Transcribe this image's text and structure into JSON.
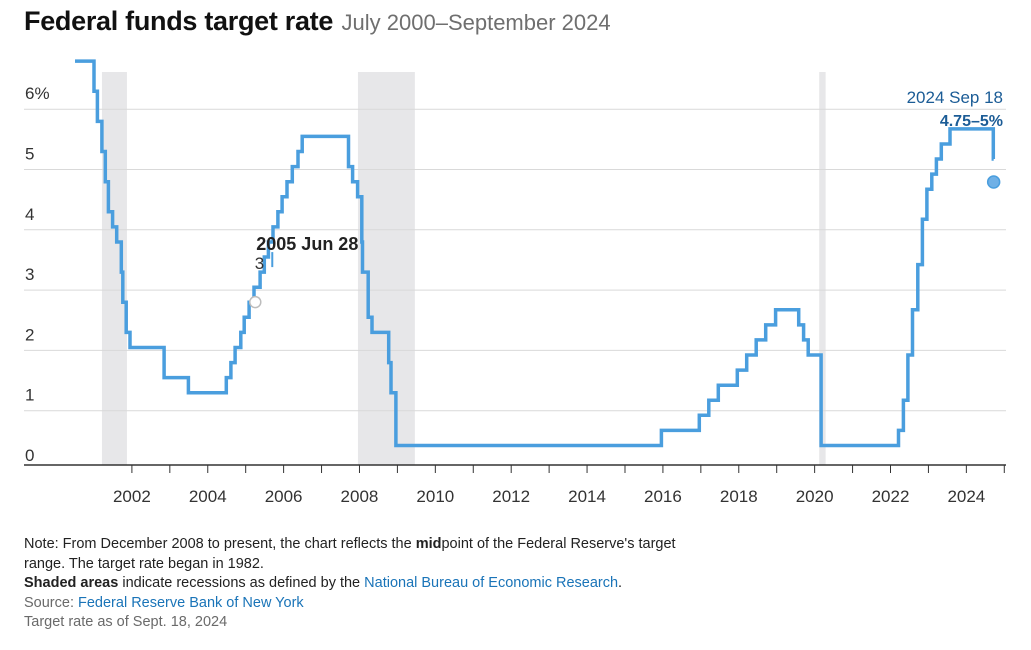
{
  "header": {
    "title": "Federal funds target rate",
    "subtitle": "July 2000–September 2024"
  },
  "chart_data": {
    "type": "line",
    "title": "Federal funds target rate",
    "subtitle": "July 2000–September 2024",
    "xlabel": "",
    "ylabel": "",
    "x_ticks": [
      "2002",
      "2004",
      "2006",
      "2008",
      "2010",
      "2012",
      "2014",
      "2016",
      "2018",
      "2020",
      "2022",
      "2024"
    ],
    "y_ticks": [
      "0",
      "1",
      "2",
      "3",
      "4",
      "5",
      "6%"
    ],
    "xlim": [
      2000.5,
      2024.75
    ],
    "ylim": [
      0,
      6.5
    ],
    "grid": true,
    "colors": {
      "line": "#4a9ede",
      "recession": "#e7e7e9",
      "grid": "#d9d9d9",
      "annotation": "#1b5c96"
    },
    "recessions": [
      {
        "start": 2001.21,
        "end": 2001.87
      },
      {
        "start": 2007.96,
        "end": 2009.46
      },
      {
        "start": 2020.12,
        "end": 2020.29
      }
    ],
    "series": [
      {
        "values": [
          [
            2000.5,
            6.5
          ],
          [
            2001.0,
            6.0
          ],
          [
            2001.09,
            5.5
          ],
          [
            2001.21,
            5.0
          ],
          [
            2001.3,
            4.5
          ],
          [
            2001.38,
            4.0
          ],
          [
            2001.49,
            3.75
          ],
          [
            2001.6,
            3.5
          ],
          [
            2001.72,
            3.0
          ],
          [
            2001.76,
            2.5
          ],
          [
            2001.85,
            2.0
          ],
          [
            2001.95,
            1.75
          ],
          [
            2002.85,
            1.25
          ],
          [
            2003.49,
            1.0
          ],
          [
            2004.49,
            1.25
          ],
          [
            2004.61,
            1.5
          ],
          [
            2004.72,
            1.75
          ],
          [
            2004.87,
            2.0
          ],
          [
            2004.96,
            2.25
          ],
          [
            2005.09,
            2.5
          ],
          [
            2005.22,
            2.75
          ],
          [
            2005.38,
            3.0
          ],
          [
            2005.49,
            3.25
          ],
          [
            2005.6,
            3.5
          ],
          [
            2005.72,
            3.75
          ],
          [
            2005.85,
            4.0
          ],
          [
            2005.96,
            4.25
          ],
          [
            2006.09,
            4.5
          ],
          [
            2006.23,
            4.75
          ],
          [
            2006.38,
            5.0
          ],
          [
            2006.49,
            5.25
          ],
          [
            2007.71,
            4.75
          ],
          [
            2007.82,
            4.5
          ],
          [
            2007.95,
            4.25
          ],
          [
            2008.06,
            3.5
          ],
          [
            2008.08,
            3.0
          ],
          [
            2008.23,
            2.25
          ],
          [
            2008.33,
            2.0
          ],
          [
            2008.77,
            1.5
          ],
          [
            2008.83,
            1.0
          ],
          [
            2008.96,
            0.125
          ],
          [
            2015.96,
            0.375
          ],
          [
            2016.96,
            0.625
          ],
          [
            2017.21,
            0.875
          ],
          [
            2017.46,
            1.125
          ],
          [
            2017.96,
            1.375
          ],
          [
            2018.21,
            1.625
          ],
          [
            2018.46,
            1.875
          ],
          [
            2018.71,
            2.125
          ],
          [
            2018.97,
            2.375
          ],
          [
            2019.58,
            2.125
          ],
          [
            2019.71,
            1.875
          ],
          [
            2019.83,
            1.625
          ],
          [
            2020.17,
            0.125
          ],
          [
            2022.21,
            0.375
          ],
          [
            2022.34,
            0.875
          ],
          [
            2022.46,
            1.625
          ],
          [
            2022.58,
            2.375
          ],
          [
            2022.72,
            3.125
          ],
          [
            2022.84,
            3.875
          ],
          [
            2022.96,
            4.375
          ],
          [
            2023.09,
            4.625
          ],
          [
            2023.21,
            4.875
          ],
          [
            2023.34,
            5.125
          ],
          [
            2023.57,
            5.375
          ],
          [
            2024.71,
            4.875
          ],
          [
            2024.72,
            4.875
          ]
        ]
      }
    ],
    "annotations": [
      {
        "date": "2005 Jun 28",
        "value": "3"
      },
      {
        "date": "2024 Sep 18",
        "value": "4.75–5%"
      }
    ]
  },
  "notes": {
    "line1": "Note: From December 2008 to present, the chart reflects the ",
    "line1_bold": "mid",
    "line1_after": "point of the Federal Reserve's target",
    "line2": "range. The target rate began in 1982.",
    "shaded_bold": "Shaded areas",
    "shaded_text": " indicate recessions as defined by the ",
    "nber_link": "National Bureau of Economic Research",
    "period": ".",
    "source_label": "Source: ",
    "source_link": "Federal Reserve Bank of New York",
    "asof": "Target rate as of Sept. 18, 2024"
  }
}
